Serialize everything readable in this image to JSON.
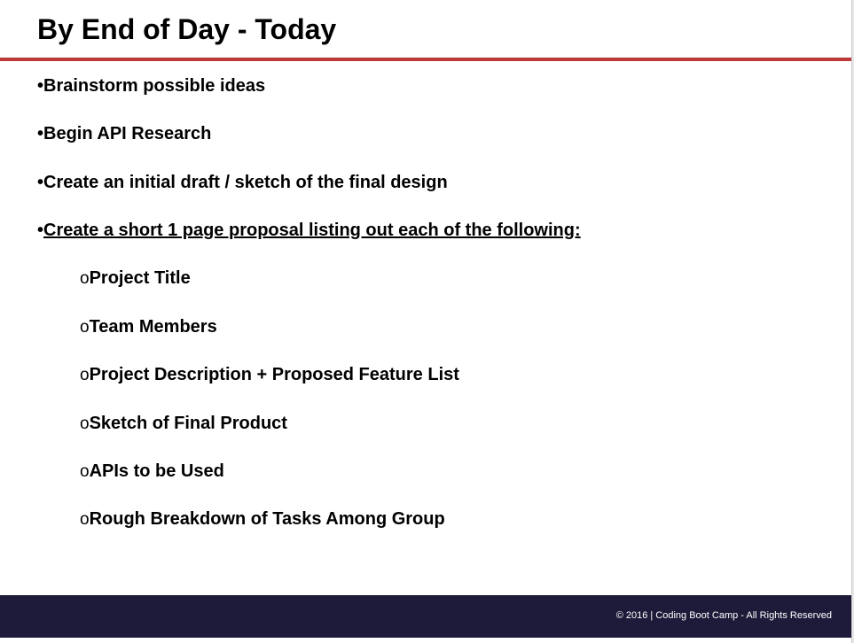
{
  "slide": {
    "title": "By End of Day - Today",
    "items": [
      {
        "bullet": "•",
        "text": "Brainstorm possible ideas"
      },
      {
        "bullet": "•",
        "text": "Begin API Research"
      },
      {
        "bullet": "•",
        "text": "Create an initial draft / sketch of the final design"
      },
      {
        "bullet": "•",
        "text": "Create a short 1 page proposal listing out each of the following:"
      }
    ],
    "subitems": [
      {
        "bullet": "o",
        "text": "Project Title"
      },
      {
        "bullet": "o",
        "text": "Team Members"
      },
      {
        "bullet": "o",
        "text": "Project Description + Proposed Feature List"
      },
      {
        "bullet": "o",
        "text": "Sketch of Final Product"
      },
      {
        "bullet": "o",
        "text": "APIs to be Used"
      },
      {
        "bullet": "o",
        "text": "Rough Breakdown of Tasks Among Group"
      }
    ]
  },
  "footer": {
    "text": "© 2016 | Coding Boot Camp - All Rights Reserved"
  },
  "colors": {
    "accent_rule": "#be3a3a",
    "footer_bg": "#1e1b3a"
  }
}
